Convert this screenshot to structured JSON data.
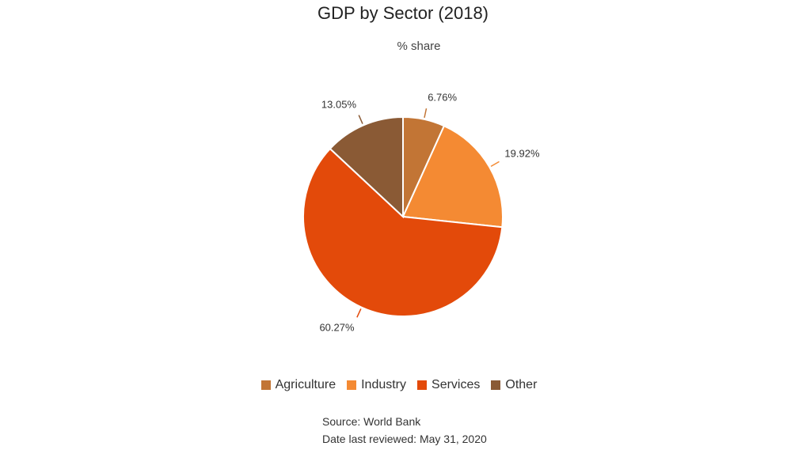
{
  "chart_data": {
    "type": "pie",
    "title": "GDP by Sector (2018)",
    "subtitle": "% share",
    "categories": [
      "Agriculture",
      "Industry",
      "Services",
      "Other"
    ],
    "values": [
      6.76,
      19.92,
      60.27,
      13.05
    ],
    "labels": [
      "6.76%",
      "19.92%",
      "60.27%",
      "13.05%"
    ],
    "colors": [
      "#C27535",
      "#F48A33",
      "#E34A0A",
      "#8A5A35"
    ],
    "legend_position": "bottom"
  },
  "footer": {
    "source": "Source: World Bank",
    "reviewed": "Date last reviewed: May 31, 2020"
  }
}
